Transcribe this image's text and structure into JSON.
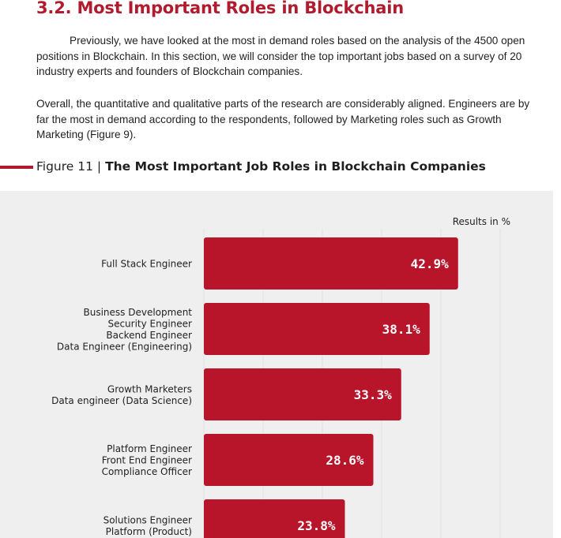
{
  "section": {
    "heading": "3.2. Most Important Roles in Blockchain",
    "paragraphs": [
      "Previously, we have looked at the most in demand roles based on the analysis of the 4500 open positions in Blockchain. In this section, we will consider the top important jobs based on a survey of 20 industry experts and founders of Blockchain companies.",
      "Overall, the quantitative and qualitative parts of the research are considerably aligned. Engineers are by far the most in demand according to the respondents, followed by Marketing roles such as Growth Marketing (Figure 9)."
    ]
  },
  "figure": {
    "label": "Figure  11 | ",
    "title": "The Most Important Job Roles in Blockchain Companies"
  },
  "chart_data": {
    "type": "bar",
    "orientation": "horizontal",
    "units_note": "Results in %",
    "categories": [
      [
        "Full Stack Engineer"
      ],
      [
        "Business Development",
        "Security Engineer",
        "Backend Engineer",
        "Data Engineer (Engineering)"
      ],
      [
        "Growth Marketers",
        "Data engineer (Data Science)"
      ],
      [
        "Platform Engineer",
        "Front End Engineer",
        "Compliance Officer"
      ],
      [
        "Solutions Engineer",
        "Platform (Product)"
      ]
    ],
    "values": [
      42.9,
      38.1,
      33.3,
      28.6,
      23.8
    ],
    "value_labels": [
      "42.9%",
      "38.1%",
      "33.3%",
      "28.6%",
      "23.8%"
    ],
    "xlim": [
      0,
      50
    ],
    "grid": true,
    "bar_color": "#b8142a",
    "label_color": "#ffffff"
  },
  "colors": {
    "accent": "#b01c2e",
    "chart_background": "#efefef",
    "gridline": "#e2e2e2"
  }
}
